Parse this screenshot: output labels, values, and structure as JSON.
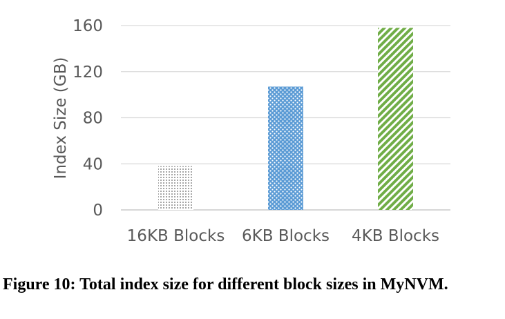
{
  "caption": "Figure 10: Total index size for different block sizes in MyNVM.",
  "chart_data": {
    "type": "bar",
    "categories": [
      "16KB Blocks",
      "6KB Blocks",
      "4KB Blocks"
    ],
    "values": [
      38,
      107,
      158
    ],
    "ylabel": "Index Size (GB)",
    "xlabel": "",
    "ylim": [
      0,
      160
    ],
    "yticks": [
      0,
      40,
      80,
      120,
      160
    ],
    "grid": true,
    "bar_colors": [
      "#a6a6a6",
      "#5b9bd5",
      "#70ad47"
    ],
    "bar_patterns": [
      "fine-dots",
      "dots",
      "diagonal-stripes"
    ]
  }
}
